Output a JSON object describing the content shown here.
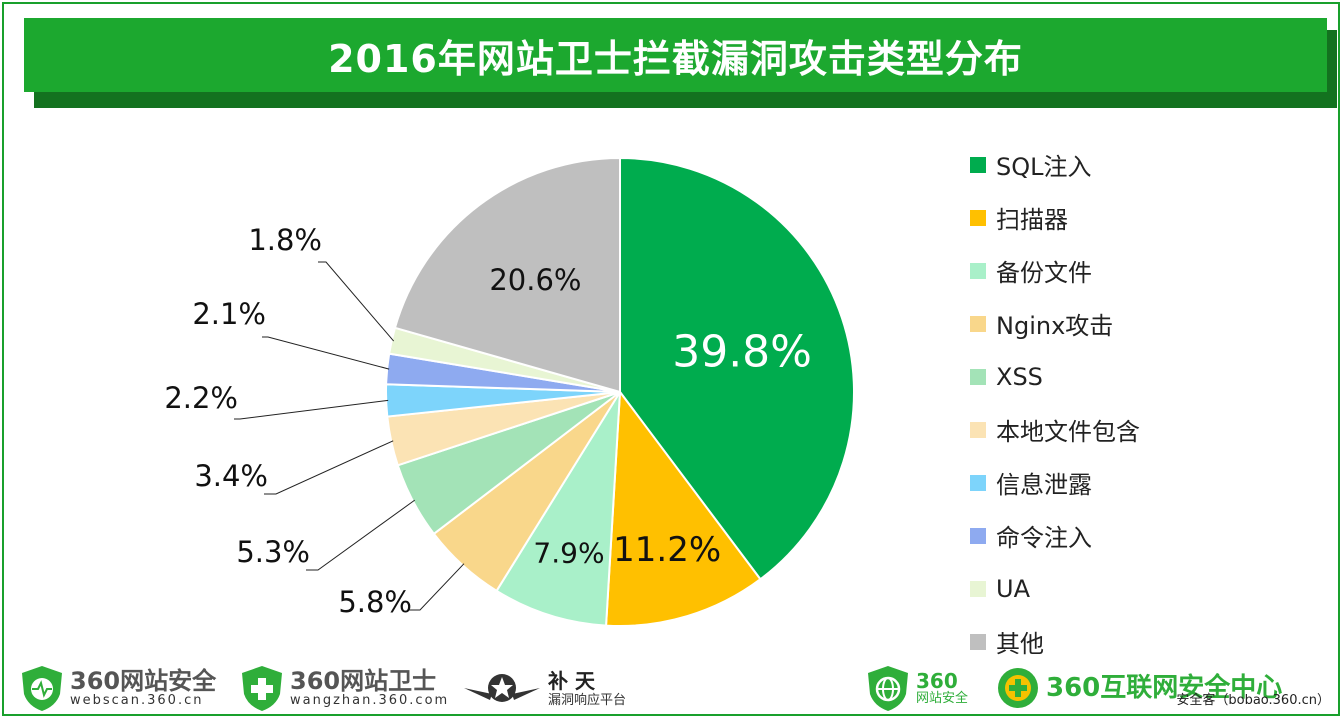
{
  "header": {
    "title": "2016年网站卫士拦截漏洞攻击类型分布"
  },
  "chart_data": {
    "type": "pie",
    "title": "2016年网站卫士拦截漏洞攻击类型分布",
    "slices": [
      {
        "label": "SQL注入",
        "value": 39.8,
        "display": "39.8%",
        "color": "#00ac4e"
      },
      {
        "label": "扫描器",
        "value": 11.2,
        "display": "11.2%",
        "color": "#ffc000"
      },
      {
        "label": "备份文件",
        "value": 7.9,
        "display": "7.9%",
        "color": "#a9f0c9"
      },
      {
        "label": "Nginx攻击",
        "value": 5.8,
        "display": "5.8%",
        "color": "#f9d78b"
      },
      {
        "label": "XSS",
        "value": 5.3,
        "display": "5.3%",
        "color": "#a3e3b7"
      },
      {
        "label": "本地文件包含",
        "value": 3.4,
        "display": "3.4%",
        "color": "#fbe3b4"
      },
      {
        "label": "信息泄露",
        "value": 2.2,
        "display": "2.2%",
        "color": "#7dd4fb"
      },
      {
        "label": "命令注入",
        "value": 2.1,
        "display": "2.1%",
        "color": "#8eaaf0"
      },
      {
        "label": "UA",
        "value": 1.8,
        "display": "1.8%",
        "color": "#e8f5d4"
      },
      {
        "label": "其他",
        "value": 20.6,
        "display": "20.6%",
        "color": "#bfbfbf"
      }
    ],
    "legend_position": "right"
  },
  "footer": {
    "logos": [
      {
        "name": "360网站安全",
        "sub": "webscan.360.cn",
        "icon": "shield-heartbeat-icon",
        "color": "#2fae3a"
      },
      {
        "name": "360网站卫士",
        "sub": "wangzhan.360.com",
        "icon": "shield-cross-icon",
        "color": "#2fae3a"
      },
      {
        "name": "补 天",
        "sub": "漏洞响应平台",
        "icon": "winged-star-icon",
        "color": "#333333"
      },
      {
        "name": "360",
        "sub": "网站安全",
        "icon": "shield-globe-icon",
        "color": "#2fae3a"
      },
      {
        "name": "360互联网安全中心",
        "sub": "",
        "icon": "shield-plus-icon",
        "color": "#2fae3a"
      }
    ],
    "copyright": "安全客（bobao.360.cn）"
  }
}
